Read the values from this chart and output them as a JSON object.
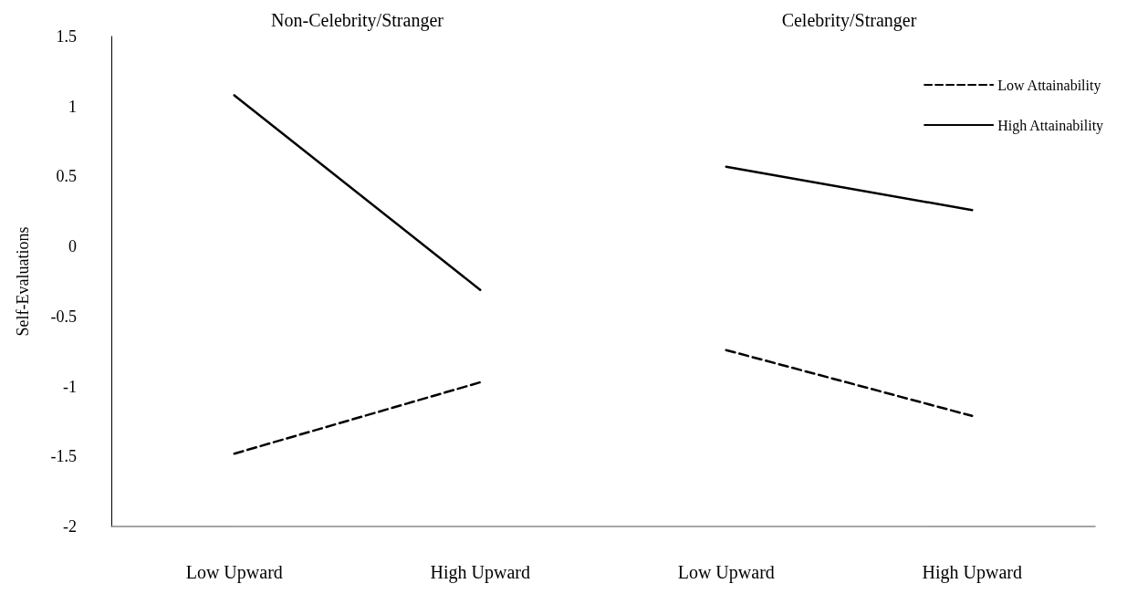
{
  "chart_data": {
    "type": "line",
    "ylabel": "Self-Evaluations",
    "categories": [
      "Low Upward",
      "High Upward",
      "Low Upward",
      "High Upward"
    ],
    "annotations": [
      "Non-Celebrity/Stranger",
      "Celebrity/Stranger"
    ],
    "series": [
      {
        "name": "Low Attainability",
        "color": "#000000",
        "line_style": "dashed",
        "values": [
          -1.48,
          -0.97,
          null,
          null
        ]
      },
      {
        "name": "High Attainability",
        "color": "#000000",
        "line_style": "solid",
        "values": [
          1.08,
          -0.31,
          null,
          null
        ]
      },
      {
        "color": "#000000",
        "line_style": "dashed",
        "values": [
          null,
          null,
          -0.74,
          -1.21
        ]
      },
      {
        "color": "#000000",
        "line_style": "solid",
        "values": [
          null,
          null,
          0.57,
          0.26
        ]
      }
    ],
    "ylim": [
      -2,
      1.5
    ],
    "yticks": [
      -2,
      -1.5,
      -1,
      -0.5,
      0,
      0.5,
      1,
      1.5
    ],
    "grid": false,
    "legend": "top right",
    "marker": "none"
  }
}
